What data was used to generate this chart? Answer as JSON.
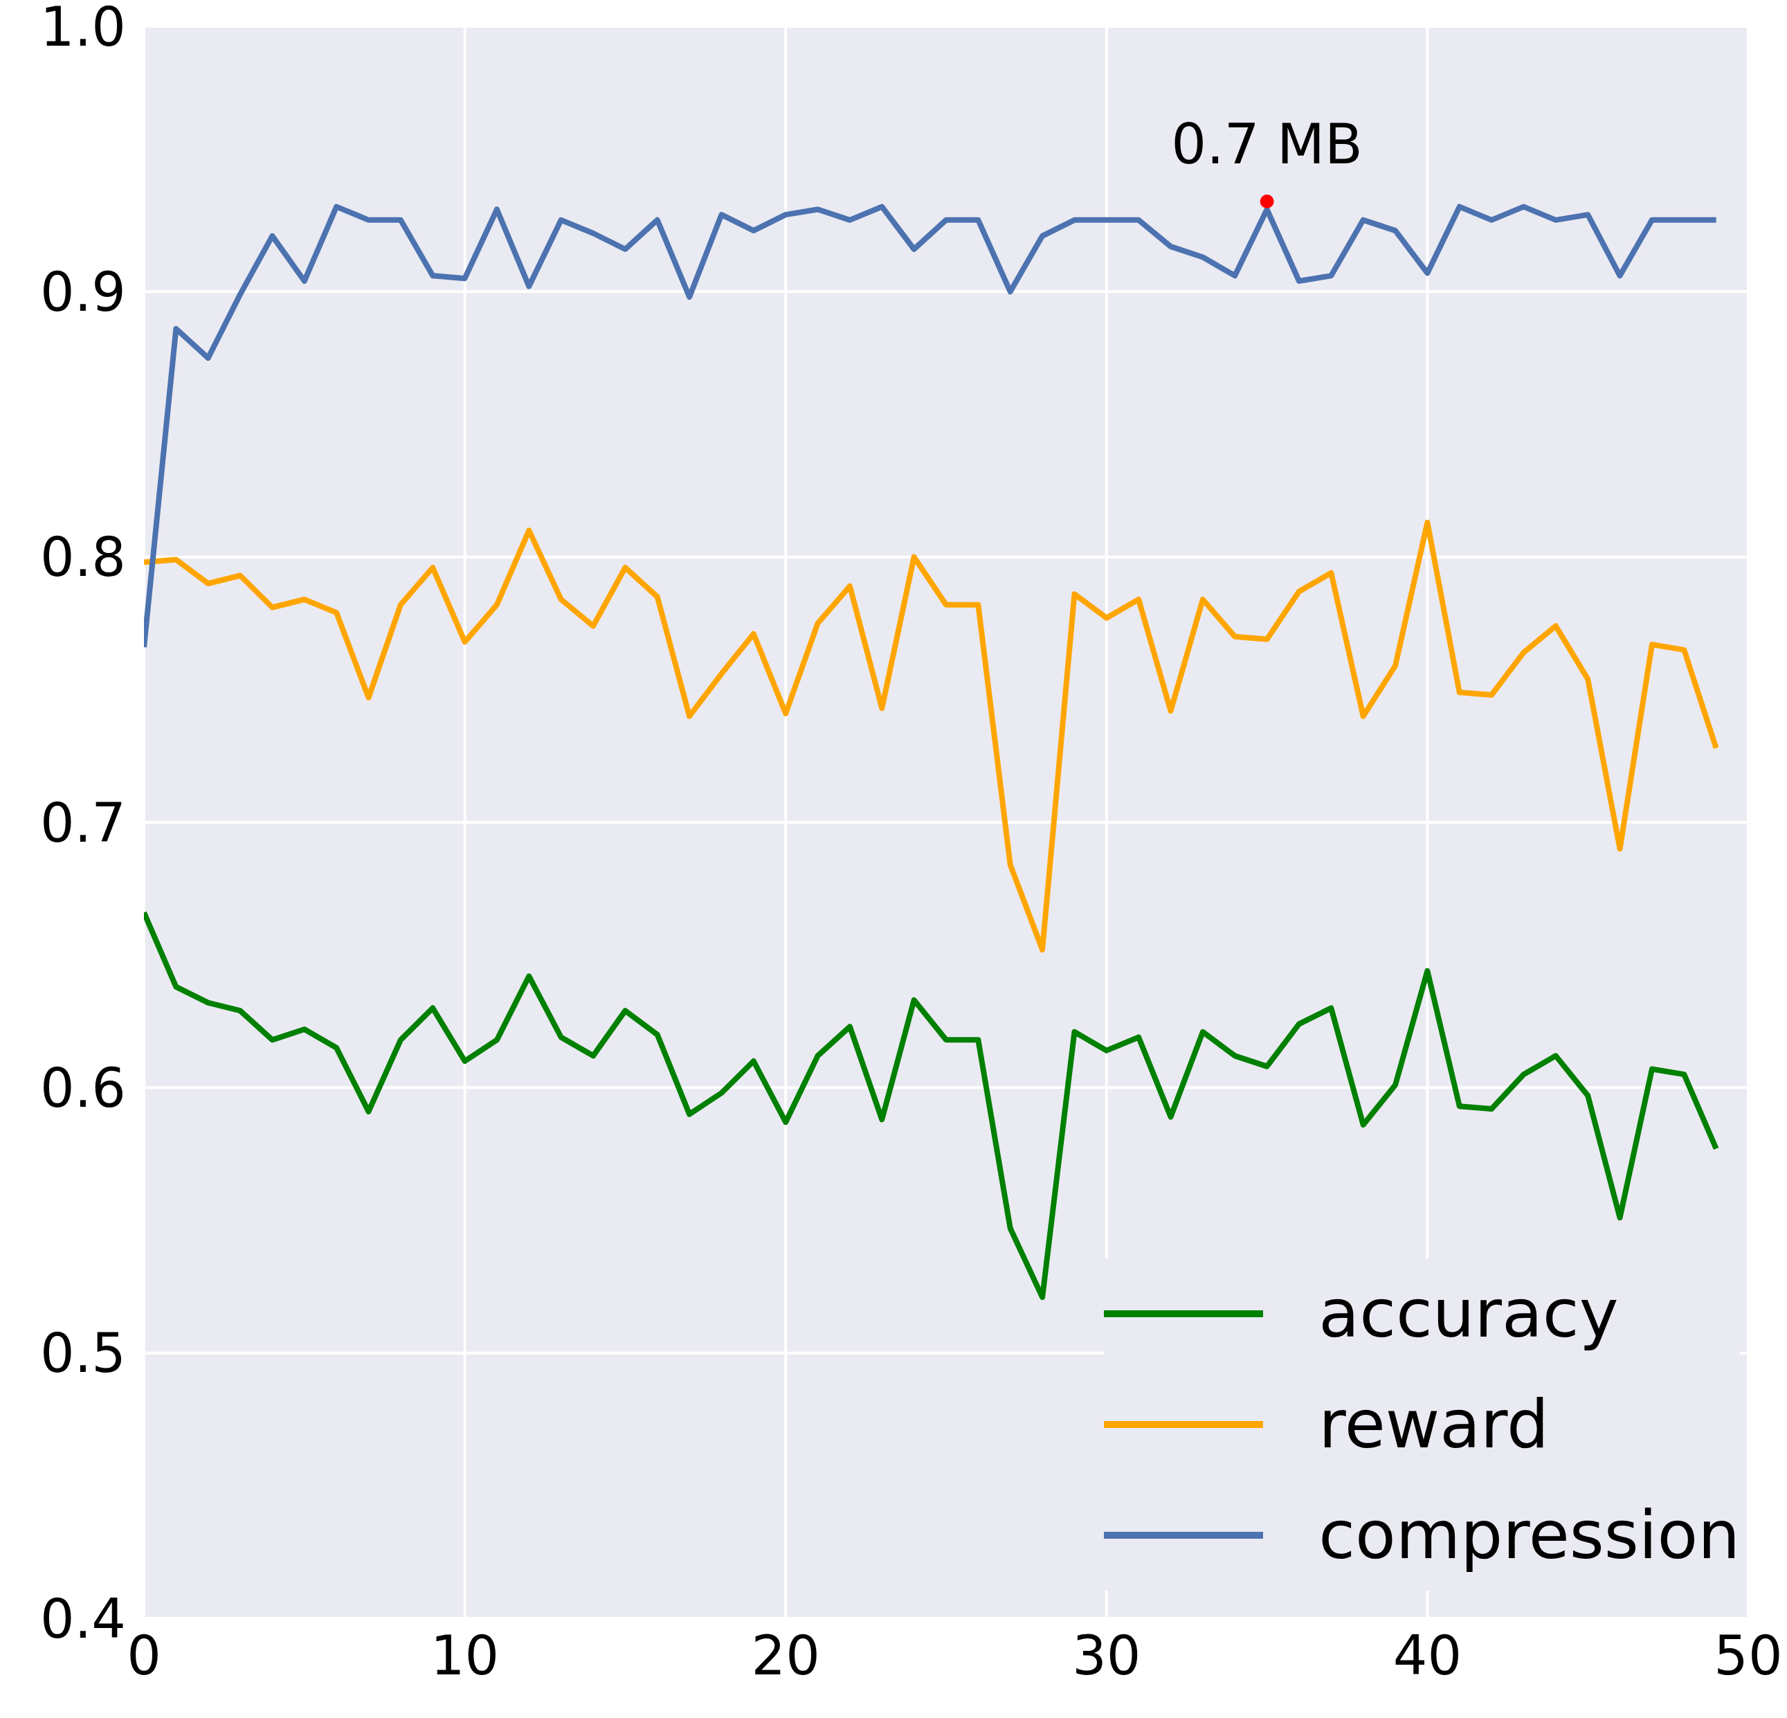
{
  "chart_data": {
    "type": "line",
    "x": [
      0,
      1,
      2,
      3,
      4,
      5,
      6,
      7,
      8,
      9,
      10,
      11,
      12,
      13,
      14,
      15,
      16,
      17,
      18,
      19,
      20,
      21,
      22,
      23,
      24,
      25,
      26,
      27,
      28,
      29,
      30,
      31,
      32,
      33,
      34,
      35,
      36,
      37,
      38,
      39,
      40,
      41,
      42,
      43,
      44,
      45,
      46,
      47,
      48,
      49
    ],
    "series": [
      {
        "name": "accuracy",
        "color": "#008000",
        "values": [
          0.666,
          0.638,
          0.632,
          0.629,
          0.618,
          0.622,
          0.615,
          0.591,
          0.618,
          0.63,
          0.61,
          0.618,
          0.642,
          0.619,
          0.612,
          0.629,
          0.62,
          0.59,
          0.598,
          0.61,
          0.587,
          0.612,
          0.623,
          0.588,
          0.633,
          0.618,
          0.618,
          0.547,
          0.521,
          0.621,
          0.614,
          0.619,
          0.589,
          0.621,
          0.612,
          0.608,
          0.624,
          0.63,
          0.586,
          0.601,
          0.644,
          0.593,
          0.592,
          0.605,
          0.612,
          0.597,
          0.551,
          0.607,
          0.605,
          0.577
        ]
      },
      {
        "name": "reward",
        "color": "#ffa500",
        "values": [
          0.798,
          0.799,
          0.79,
          0.793,
          0.781,
          0.784,
          0.779,
          0.747,
          0.782,
          0.796,
          0.768,
          0.782,
          0.81,
          0.784,
          0.774,
          0.796,
          0.785,
          0.74,
          0.756,
          0.771,
          0.741,
          0.775,
          0.789,
          0.743,
          0.8,
          0.782,
          0.782,
          0.684,
          0.652,
          0.786,
          0.777,
          0.784,
          0.742,
          0.784,
          0.77,
          0.769,
          0.787,
          0.794,
          0.74,
          0.759,
          0.813,
          0.749,
          0.748,
          0.764,
          0.774,
          0.754,
          0.69,
          0.767,
          0.765,
          0.728
        ]
      },
      {
        "name": "compression",
        "color": "#4c72b0",
        "values": [
          0.766,
          0.886,
          0.875,
          0.899,
          0.921,
          0.904,
          0.932,
          0.927,
          0.927,
          0.906,
          0.905,
          0.931,
          0.902,
          0.927,
          0.922,
          0.916,
          0.927,
          0.898,
          0.929,
          0.923,
          0.929,
          0.931,
          0.927,
          0.932,
          0.916,
          0.927,
          0.927,
          0.9,
          0.921,
          0.927,
          0.927,
          0.927,
          0.917,
          0.913,
          0.906,
          0.931,
          0.904,
          0.906,
          0.927,
          0.923,
          0.907,
          0.932,
          0.927,
          0.932,
          0.927,
          0.929,
          0.906,
          0.927,
          0.927,
          0.927
        ]
      },
      {
        "type": "scatter",
        "color": "#ff0000",
        "marker": "circle",
        "x": [
          35
        ],
        "values": [
          0.934
        ]
      }
    ],
    "annotations": [
      {
        "text": "0.7 MB",
        "x": 35,
        "y": 0.934
      }
    ],
    "xlim": [
      0,
      50
    ],
    "xticks": [
      0,
      10,
      20,
      30,
      40,
      50
    ],
    "ylim": [
      0.4,
      1.0
    ],
    "yticks": [
      {
        "value": 0.4,
        "label": "0.4"
      },
      {
        "value": 0.5,
        "label": "0.5"
      },
      {
        "value": 0.6,
        "label": "0.6"
      },
      {
        "value": 0.7,
        "label": "0.7"
      },
      {
        "value": 0.8,
        "label": "0.8"
      },
      {
        "value": 0.9,
        "label": "0.9"
      },
      {
        "value": 1.0,
        "label": "1.0"
      }
    ],
    "grid": true,
    "legend": "bottom right",
    "marker": "none",
    "line_style": "solid"
  }
}
